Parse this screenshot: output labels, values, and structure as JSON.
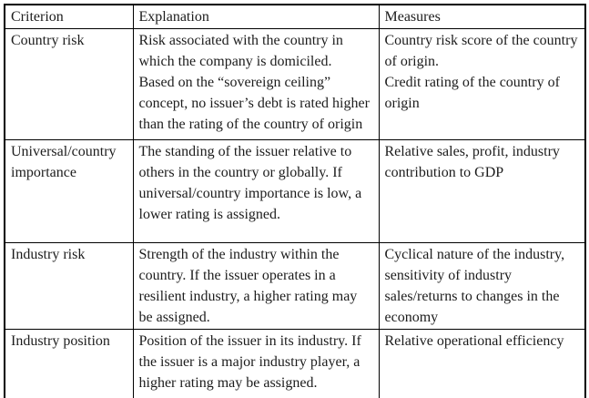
{
  "table": {
    "headers": {
      "criterion": "Criterion",
      "explanation": "Explanation",
      "measures": "Measures"
    },
    "rows": [
      {
        "criterion": "Country risk",
        "explanation": "Risk associated with the country in which the company is domiciled.\nBased on the “sovereign ceiling” concept, no issuer’s debt is rated higher than the rating of the country of origin",
        "measures": "Country risk score of the country of origin.\nCredit rating of the country of origin"
      },
      {
        "criterion": "Universal/country importance",
        "explanation": "The standing of the issuer relative to others in the country or globally. If universal/country importance is low, a lower rating is assigned.",
        "measures": "Relative sales, profit, industry contribution to GDP"
      },
      {
        "criterion": "Industry risk",
        "explanation": "Strength of the industry within the country. If the issuer operates in a resilient industry, a higher rating may be assigned.",
        "measures": "Cyclical nature of the industry, sensitivity of industry sales/returns to changes in the economy"
      },
      {
        "criterion": "Industry position",
        "explanation": "Position of the issuer in its industry. If the issuer is a major industry player, a higher rating may be assigned.",
        "measures": "Relative operational efficiency"
      }
    ]
  },
  "colors": {
    "border": "#000000",
    "text": "#1c1c1c",
    "background": "#ffffff"
  }
}
